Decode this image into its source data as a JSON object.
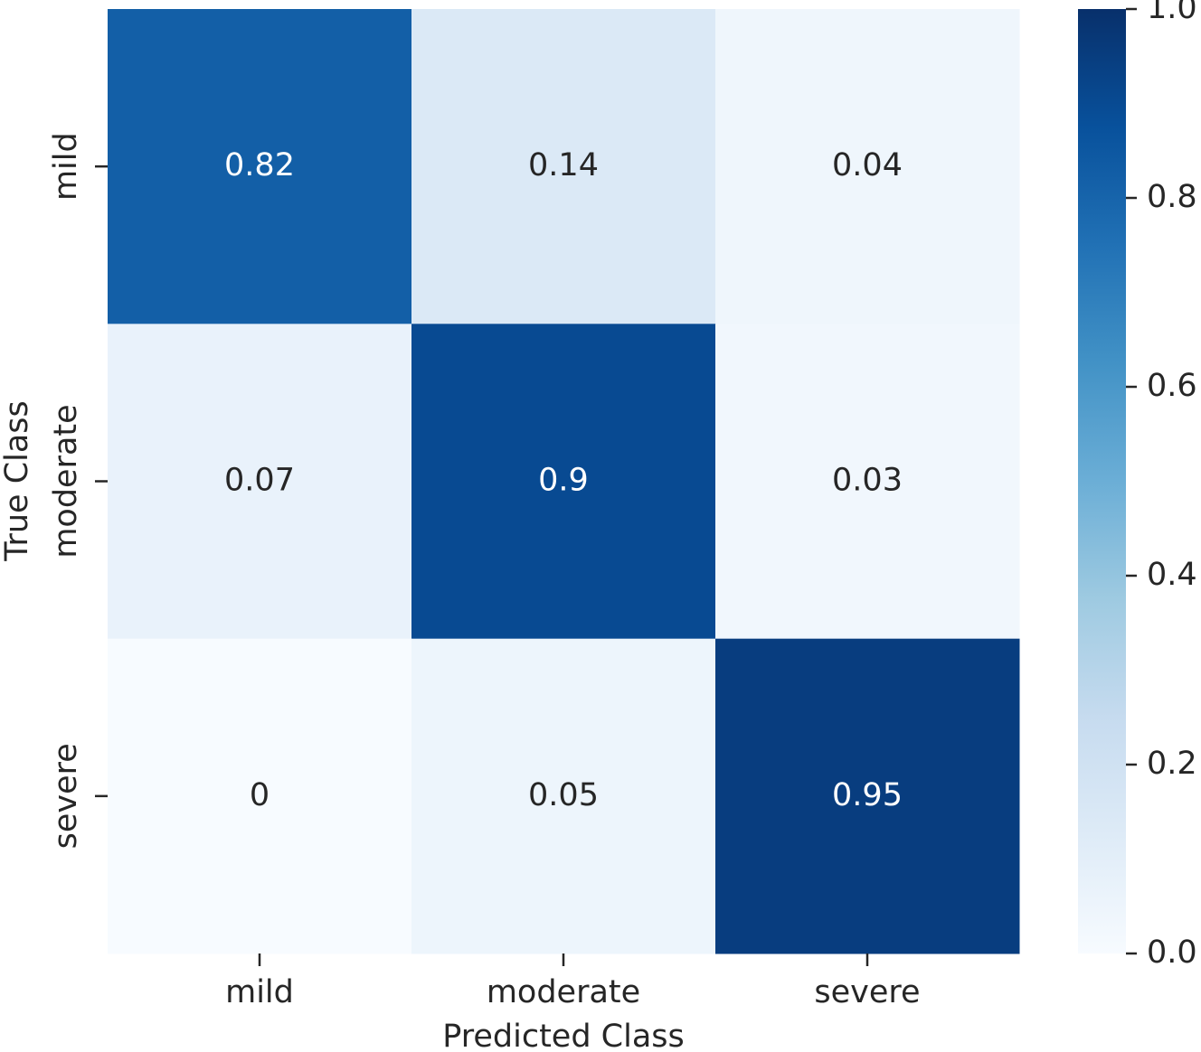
{
  "chart_data": {
    "type": "heatmap",
    "xlabel": "Predicted Class",
    "ylabel": "True Class",
    "x_categories": [
      "mild",
      "moderate",
      "severe"
    ],
    "y_categories": [
      "mild",
      "moderate",
      "severe"
    ],
    "values": [
      [
        0.82,
        0.14,
        0.04
      ],
      [
        0.07,
        0.9,
        0.03
      ],
      [
        0,
        0.05,
        0.95
      ]
    ],
    "clim": [
      0,
      1
    ],
    "colorbar_ticks": [
      {
        "value": 0,
        "label": "0.0"
      },
      0.2,
      0.4,
      0.6,
      0.8,
      {
        "value": 1,
        "label": "1.0"
      }
    ],
    "colorscale": [
      "#f7fbff",
      "#deebf7",
      "#c6dbef",
      "#9ecae1",
      "#6baed6",
      "#4292c6",
      "#2171b5",
      "#08519c",
      "#08306b"
    ]
  }
}
